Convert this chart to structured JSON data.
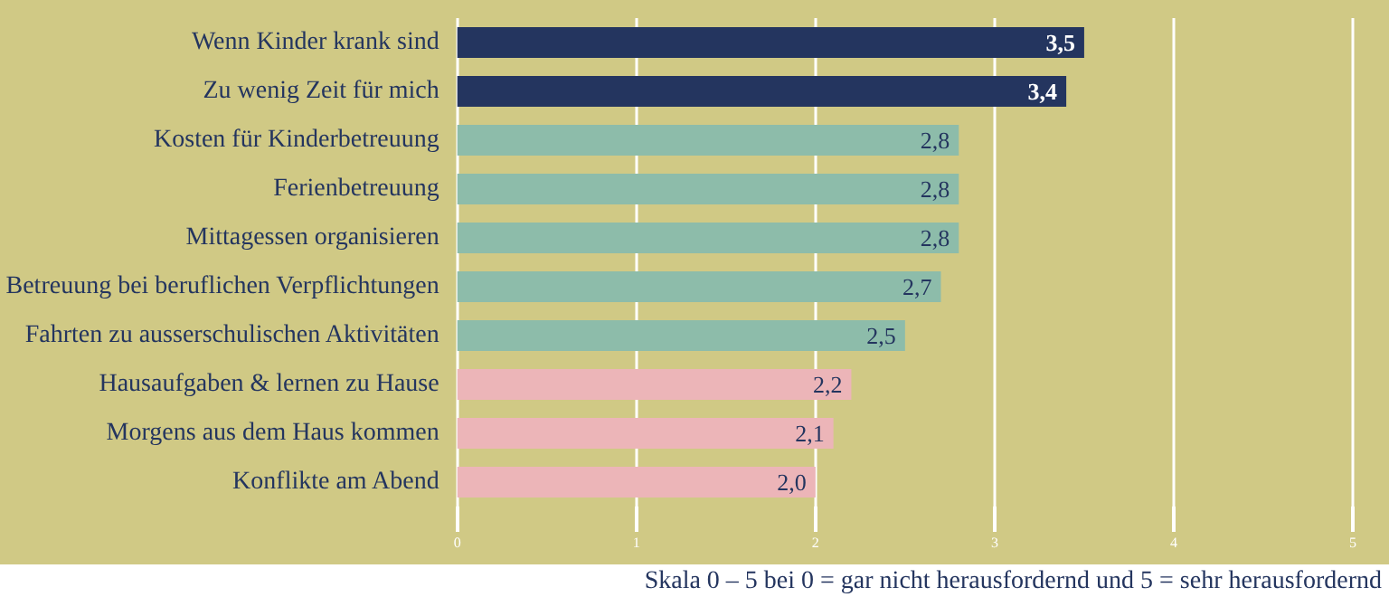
{
  "chart_data": {
    "type": "bar",
    "orientation": "horizontal",
    "categories": [
      "Wenn Kinder krank sind",
      "Zu wenig Zeit für mich",
      "Kosten für Kinderbetreuung",
      "Ferienbetreuung",
      "Mittagessen organisieren",
      "Betreuung bei beruflichen Verpflichtungen",
      "Fahrten zu ausserschulischen Aktivitäten",
      "Hausaufgaben & lernen zu Hause",
      "Morgens aus dem Haus kommen",
      "Konflikte am Abend"
    ],
    "values": [
      3.5,
      3.4,
      2.8,
      2.8,
      2.8,
      2.7,
      2.5,
      2.2,
      2.1,
      2.0
    ],
    "value_labels": [
      "3,5",
      "3,4",
      "2,8",
      "2,8",
      "2,8",
      "2,7",
      "2,5",
      "2,2",
      "2,1",
      "2,0"
    ],
    "colors": [
      "#24355f",
      "#24355f",
      "#8dbcaa",
      "#8dbcaa",
      "#8dbcaa",
      "#8dbcaa",
      "#8dbcaa",
      "#ecb5b8",
      "#ecb5b8",
      "#ecb5b8"
    ],
    "xlim": [
      0,
      5
    ],
    "xticks": [
      0,
      1,
      2,
      3,
      4,
      5
    ],
    "grid": "x",
    "annotations": [
      "Skala 0 – 5 bei 0 = gar nicht herausfordernd und 5 = sehr herausfordernd"
    ]
  }
}
